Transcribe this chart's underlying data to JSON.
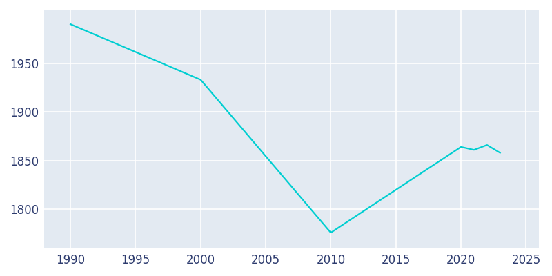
{
  "years": [
    1990,
    2000,
    2010,
    2020,
    2021,
    2022,
    2023
  ],
  "population": [
    1990,
    1933,
    1776,
    1864,
    1861,
    1866,
    1858
  ],
  "line_color": "#00CED1",
  "bg_color": "#ffffff",
  "plot_bg_color": "#E3EAF2",
  "grid_color": "#ffffff",
  "tick_label_color": "#2d3b6e",
  "xlim": [
    1988,
    2026
  ],
  "ylim": [
    1760,
    2005
  ],
  "xticks": [
    1990,
    1995,
    2000,
    2005,
    2010,
    2015,
    2020,
    2025
  ],
  "yticks": [
    1800,
    1850,
    1900,
    1950
  ],
  "linewidth": 1.6,
  "figsize": [
    8.0,
    4.0
  ],
  "dpi": 100,
  "tick_fontsize": 12
}
